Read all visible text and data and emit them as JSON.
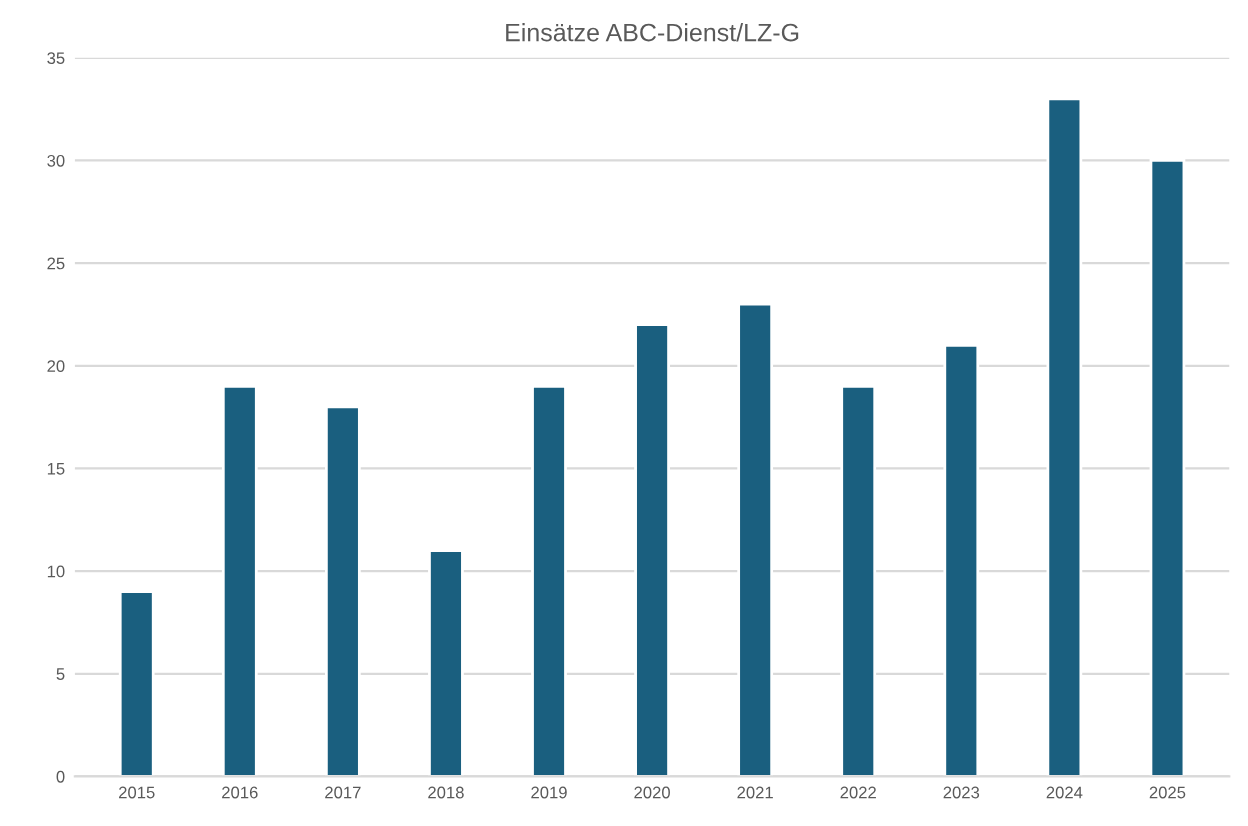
{
  "chart_data": {
    "type": "bar",
    "title": "Einsätze ABC-Dienst/LZ-G",
    "categories": [
      "2015",
      "2016",
      "2017",
      "2018",
      "2019",
      "2020",
      "2021",
      "2022",
      "2023",
      "2024",
      "2025"
    ],
    "values": [
      9,
      19,
      18,
      11,
      19,
      22,
      23,
      19,
      21,
      33,
      30
    ],
    "color": "#1a5f7f",
    "ylim": [
      0,
      35
    ],
    "yticks": [
      0,
      5,
      10,
      15,
      20,
      25,
      30,
      35
    ],
    "grid": "y",
    "legend": false
  }
}
